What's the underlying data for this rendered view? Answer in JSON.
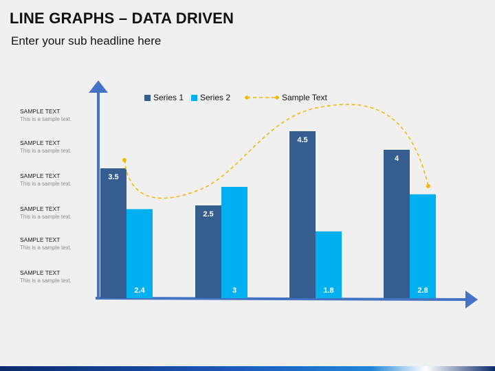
{
  "slide": {
    "title": "LINE GRAPHS – DATA DRIVEN",
    "subtitle": "Enter your sub headline here"
  },
  "side_items": [
    {
      "heading": "SAMPLE TEXT",
      "body": "This is a sample text."
    },
    {
      "heading": "SAMPLE TEXT",
      "body": "This is a sample text."
    },
    {
      "heading": "SAMPLE TEXT",
      "body": "This is a sample text."
    },
    {
      "heading": "SAMPLE TEXT",
      "body": "This is a sample text."
    },
    {
      "heading": "SAMPLE TEXT",
      "body": "This is a sample text."
    },
    {
      "heading": "SAMPLE TEXT",
      "body": "This is a sample text."
    }
  ],
  "legend": {
    "series1": "Series 1",
    "series2": "Series 2",
    "line": "Sample Text"
  },
  "colors": {
    "series1": "#355d8f",
    "series2": "#00b0f0",
    "axis": "#4472c4",
    "line": "#f5b700"
  },
  "chart_data": {
    "type": "bar",
    "categories": [
      "",
      "",
      "",
      ""
    ],
    "series": [
      {
        "name": "Series 1",
        "values": [
          3.5,
          2.5,
          4.5,
          4
        ],
        "color": "#355d8f"
      },
      {
        "name": "Series 2",
        "values": [
          2.4,
          3,
          1.8,
          2.8
        ],
        "color": "#00b0f0"
      }
    ],
    "line_series": {
      "name": "Sample Text",
      "style": "dashed smooth curve with dot markers at ends",
      "color": "#f5b700"
    },
    "ylim": [
      0,
      5
    ],
    "grid": false,
    "legend_position": "top",
    "data_labels": true
  }
}
